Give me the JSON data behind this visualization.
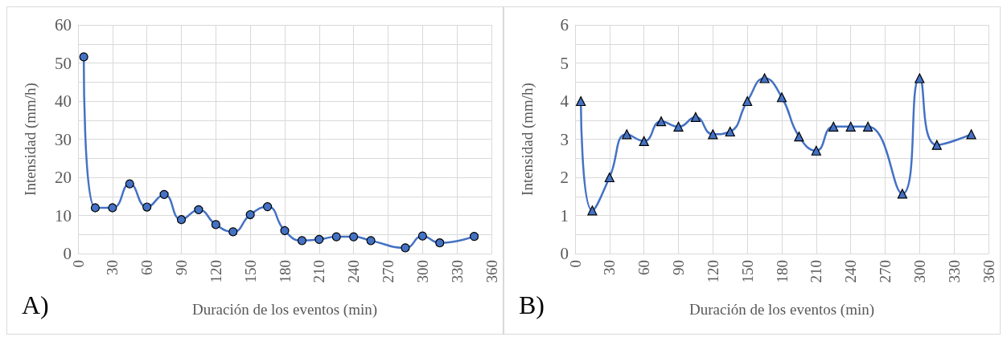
{
  "chart_data": [
    {
      "type": "line",
      "xlabel": "Duración de los eventos (min)",
      "ylabel": "Intensidad (mm/h)",
      "annotations": [
        "A)"
      ],
      "marker": "circle",
      "grid": true,
      "xlim": [
        0,
        360
      ],
      "xticks": [
        0,
        30,
        60,
        90,
        120,
        150,
        180,
        210,
        240,
        270,
        300,
        330,
        360
      ],
      "ylim": [
        0,
        60
      ],
      "yticks": [
        0,
        {
          "value": 5,
          "label": null
        },
        10,
        {
          "value": 15,
          "label": null
        },
        20,
        {
          "value": 25,
          "label": null
        },
        30,
        {
          "value": 35,
          "label": null
        },
        40,
        {
          "value": 45,
          "label": null
        },
        50,
        {
          "value": 55,
          "label": null
        },
        60
      ],
      "x": [
        5,
        15,
        30,
        45,
        60,
        75,
        90,
        105,
        120,
        135,
        150,
        165,
        180,
        195,
        210,
        225,
        240,
        255,
        285,
        300,
        315,
        345
      ],
      "series": [
        {
          "color": "#4472c4",
          "values": [
            51.6,
            12.0,
            12.0,
            18.3,
            12.2,
            15.5,
            8.9,
            11.5,
            7.6,
            5.7,
            10.2,
            12.3,
            6.0,
            3.4,
            3.7,
            4.4,
            4.4,
            3.4,
            1.5,
            4.6,
            2.8,
            4.5
          ]
        }
      ]
    },
    {
      "type": "line",
      "xlabel": "Duración de los eventos (min)",
      "ylabel": "Intensidad (mm/h)",
      "annotations": [
        "B)"
      ],
      "marker": "triangle",
      "grid": true,
      "xlim": [
        0,
        360
      ],
      "xticks": [
        0,
        30,
        60,
        90,
        120,
        150,
        180,
        210,
        240,
        270,
        300,
        330,
        360
      ],
      "ylim": [
        0,
        6
      ],
      "yticks": [
        0,
        {
          "value": 0.5,
          "label": null
        },
        1,
        {
          "value": 1.5,
          "label": null
        },
        2,
        {
          "value": 2.5,
          "label": null
        },
        3,
        {
          "value": 3.5,
          "label": null
        },
        4,
        {
          "value": 4.5,
          "label": null
        },
        5,
        {
          "value": 5.5,
          "label": null
        },
        6
      ],
      "x": [
        5,
        15,
        30,
        45,
        60,
        75,
        90,
        105,
        120,
        135,
        150,
        165,
        180,
        195,
        210,
        225,
        240,
        255,
        285,
        300,
        315,
        345
      ],
      "series": [
        {
          "color": "#4472c4",
          "values": [
            4.0,
            1.13,
            2.0,
            3.13,
            2.95,
            3.47,
            3.33,
            3.58,
            3.13,
            3.2,
            4.0,
            4.6,
            4.1,
            3.07,
            2.7,
            3.33,
            3.33,
            3.33,
            1.57,
            4.6,
            2.85,
            3.13
          ]
        }
      ]
    }
  ]
}
